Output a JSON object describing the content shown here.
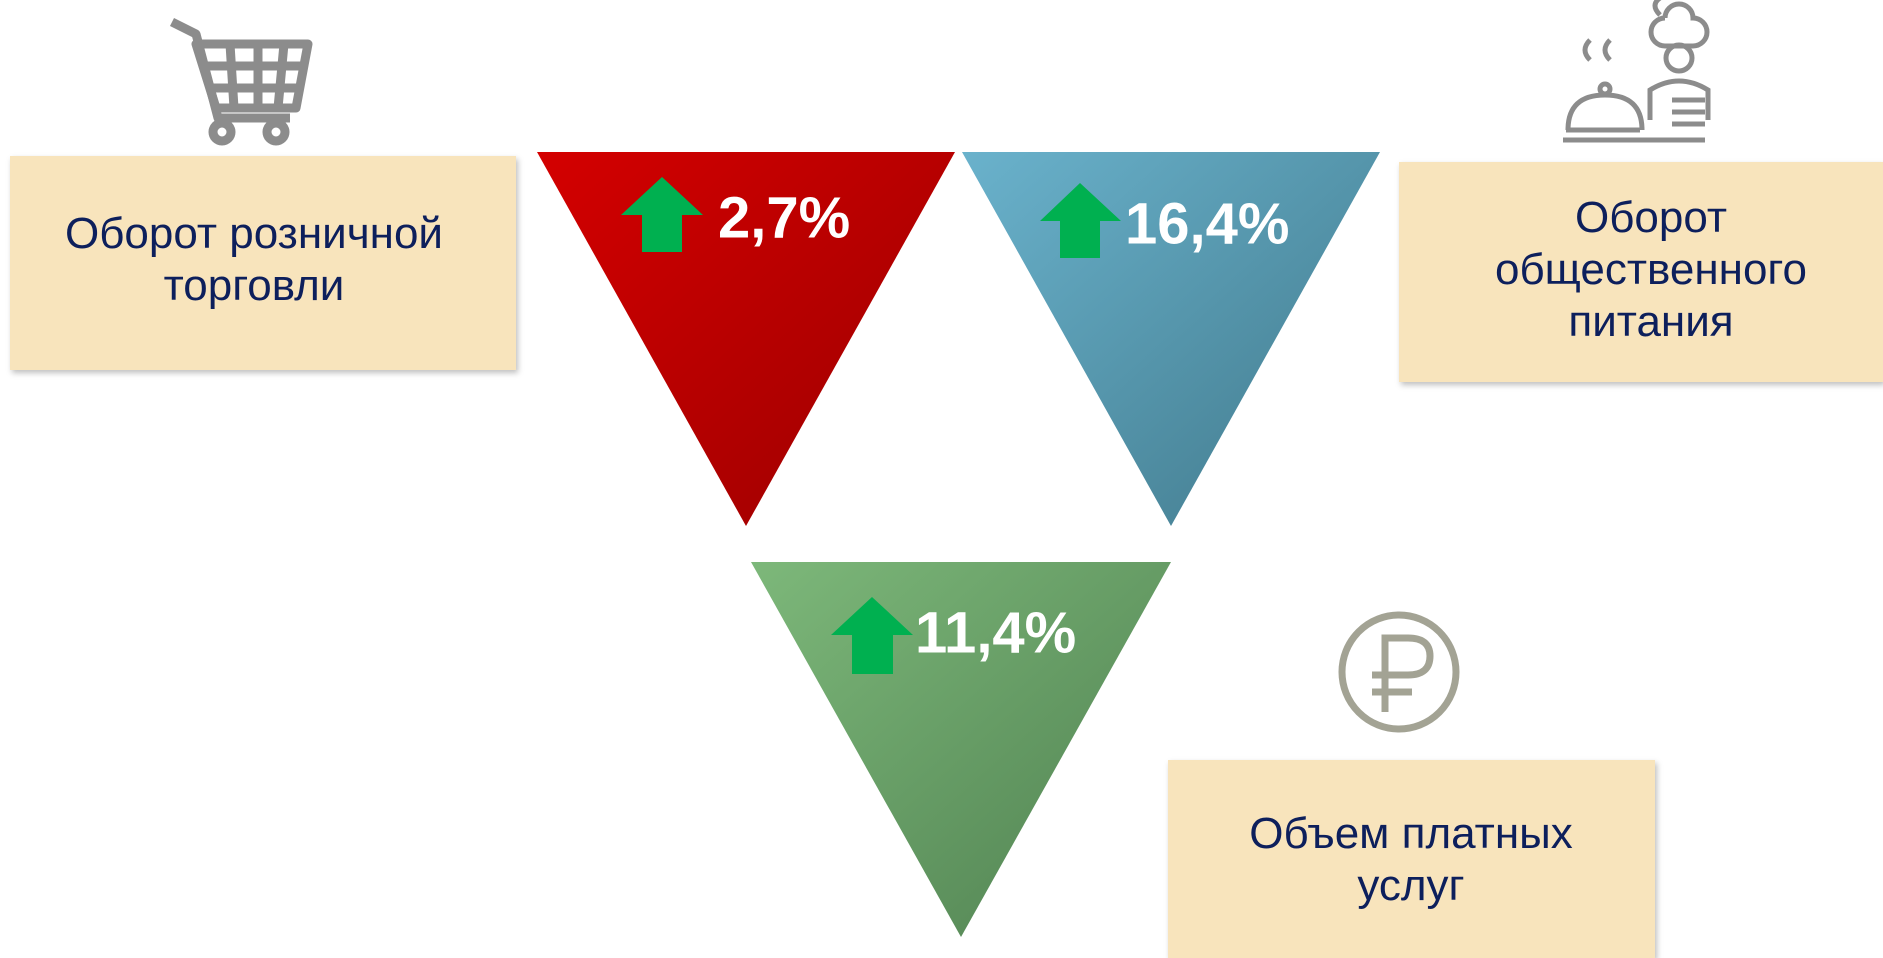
{
  "items": [
    {
      "label_lines": [
        "Оборот розничной",
        "торговли"
      ],
      "change": "2,7%"
    },
    {
      "label_lines": [
        "Оборот",
        "общественного",
        "питания"
      ],
      "change": "16,4%"
    },
    {
      "label_lines": [
        "Объем платных",
        "услуг"
      ],
      "change": "11,4%"
    }
  ]
}
